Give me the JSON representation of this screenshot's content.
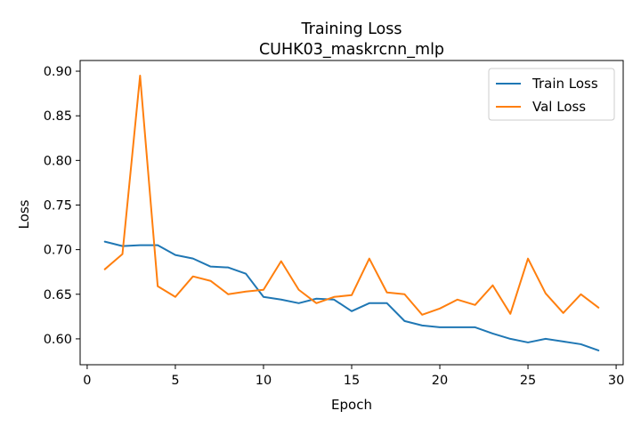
{
  "chart_data": {
    "type": "line",
    "title": "Training Loss",
    "subtitle": "CUHK03_maskrcnn_mlp",
    "xlabel": "Epoch",
    "ylabel": "Loss",
    "xlim": [
      -0.4,
      30.4
    ],
    "ylim": [
      0.571,
      0.912
    ],
    "xticks": [
      0,
      5,
      10,
      15,
      20,
      25,
      30
    ],
    "yticks": [
      0.6,
      0.65,
      0.7,
      0.75,
      0.8,
      0.85,
      0.9
    ],
    "legend_position": "top-right",
    "x": [
      1,
      2,
      3,
      4,
      5,
      6,
      7,
      8,
      9,
      10,
      11,
      12,
      13,
      14,
      15,
      16,
      17,
      18,
      19,
      20,
      21,
      22,
      23,
      24,
      25,
      26,
      27,
      28,
      29
    ],
    "series": [
      {
        "name": "Train Loss",
        "color": "#1f77b4",
        "values": [
          0.709,
          0.704,
          0.705,
          0.705,
          0.694,
          0.69,
          0.681,
          0.68,
          0.673,
          0.647,
          0.644,
          0.64,
          0.645,
          0.644,
          0.631,
          0.64,
          0.64,
          0.62,
          0.615,
          0.613,
          0.613,
          0.613,
          0.606,
          0.6,
          0.596,
          0.6,
          0.597,
          0.594,
          0.587
        ]
      },
      {
        "name": "Val Loss",
        "color": "#ff7f0e",
        "values": [
          0.678,
          0.695,
          0.895,
          0.659,
          0.647,
          0.67,
          0.665,
          0.65,
          0.653,
          0.655,
          0.687,
          0.655,
          0.64,
          0.647,
          0.649,
          0.69,
          0.652,
          0.65,
          0.627,
          0.634,
          0.644,
          0.638,
          0.66,
          0.628,
          0.69,
          0.651,
          0.629,
          0.65,
          0.635
        ]
      }
    ]
  }
}
